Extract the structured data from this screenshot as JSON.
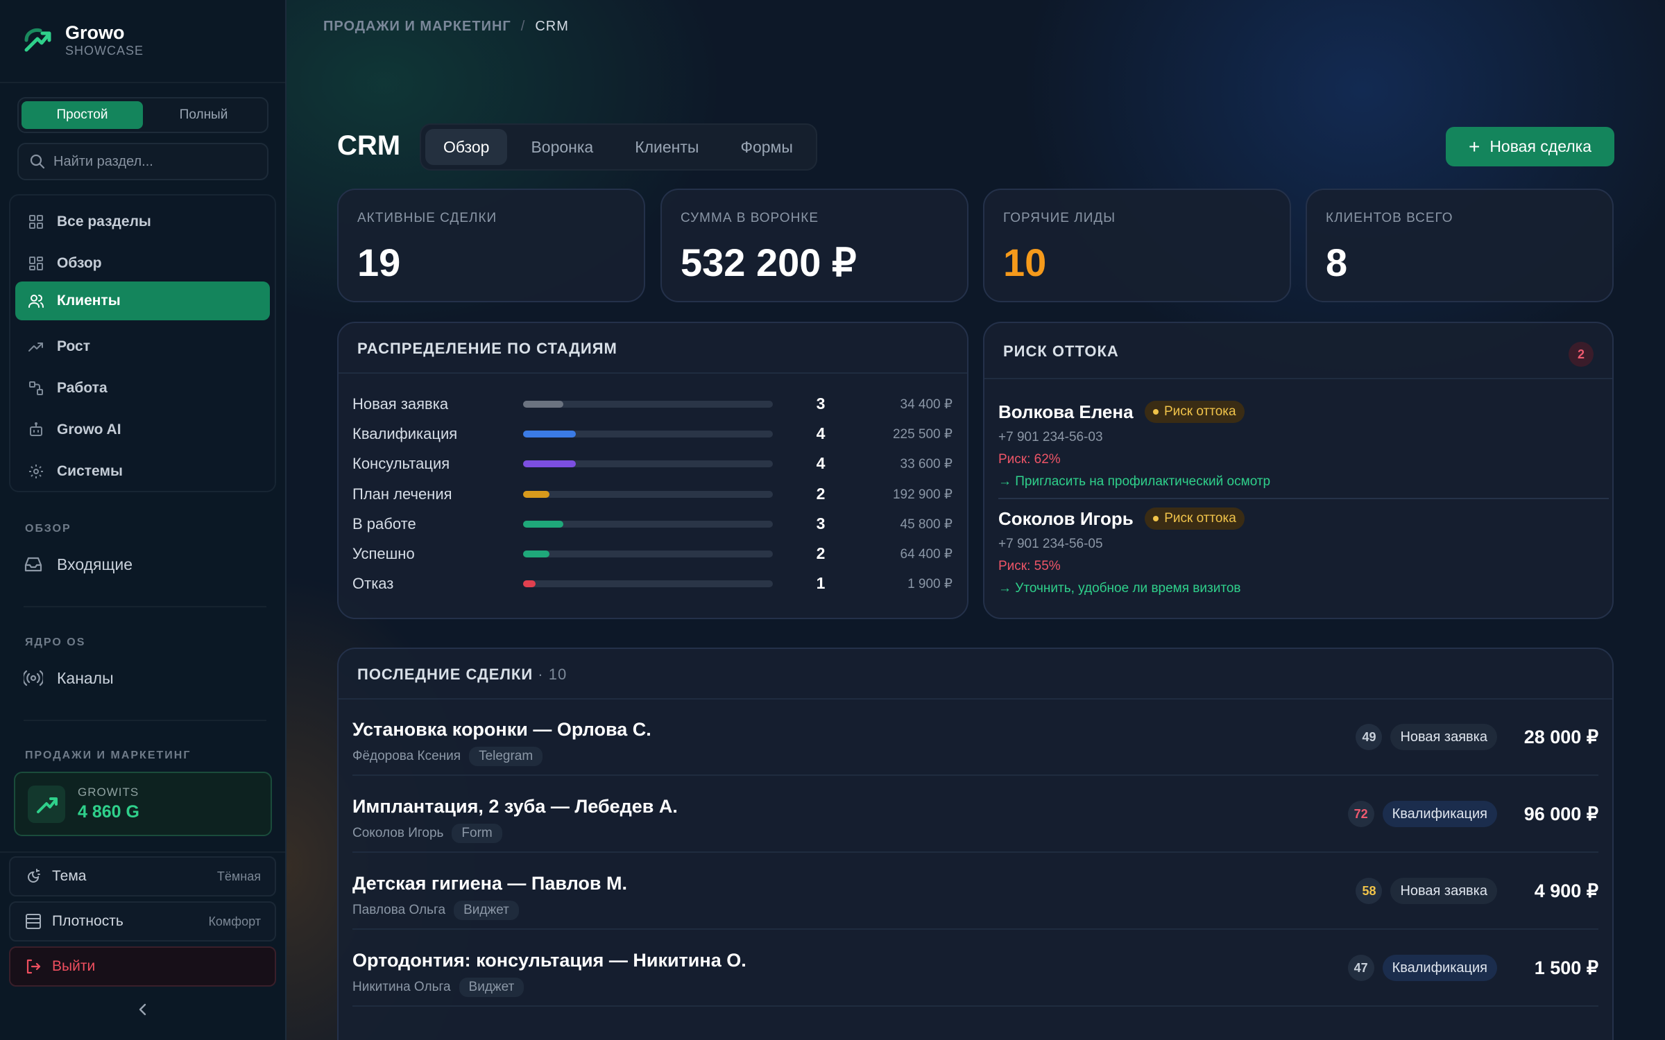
{
  "brand": {
    "name": "Growo",
    "sub": "SHOWCASE"
  },
  "sidebar": {
    "mode": {
      "simple": "Простой",
      "full": "Полный"
    },
    "search_placeholder": "Найти раздел...",
    "nav": [
      {
        "label": "Все разделы",
        "icon": "grid-icon"
      },
      {
        "label": "Обзор",
        "icon": "dashboard-icon"
      },
      {
        "label": "Клиенты",
        "icon": "users-icon",
        "active": true
      },
      {
        "label": "Рост",
        "icon": "trending-up-icon"
      },
      {
        "label": "Работа",
        "icon": "workflow-icon"
      },
      {
        "label": "Growo AI",
        "icon": "bot-icon"
      },
      {
        "label": "Системы",
        "icon": "gear-icon"
      }
    ],
    "sections": [
      {
        "title": "ОБЗОР",
        "link": "Входящие",
        "icon": "inbox-icon"
      },
      {
        "title": "ЯДРО OS",
        "link": "Каналы",
        "icon": "broadcast-icon"
      },
      {
        "title": "ПРОДАЖИ И МАРКЕТИНГ"
      }
    ],
    "growits": {
      "label": "GROWITS",
      "value": "4 860 G"
    },
    "settings": {
      "theme_label": "Тема",
      "theme_value": "Тёмная",
      "density_label": "Плотность",
      "density_value": "Комфорт",
      "logout_label": "Выйти"
    }
  },
  "breadcrumb": {
    "section": "ПРОДАЖИ И МАРКЕТИНГ",
    "separator": "/",
    "current": "CRM"
  },
  "page": {
    "title": "CRM",
    "tabs": [
      "Обзор",
      "Воронка",
      "Клиенты",
      "Формы"
    ],
    "new_deal_label": "Новая сделка"
  },
  "stats": [
    {
      "label": "АКТИВНЫЕ СДЕЛКИ",
      "value": "19"
    },
    {
      "label": "СУММА В ВОРОНКЕ",
      "value": "532 200 ₽"
    },
    {
      "label": "ГОРЯЧИЕ ЛИДЫ",
      "value": "10"
    },
    {
      "label": "КЛИЕНТОВ ВСЕГО",
      "value": "8"
    }
  ],
  "stages": {
    "title": "РАСПРЕДЕЛЕНИЕ ПО СТАДИЯМ",
    "rows": [
      {
        "name": "Новая заявка",
        "count": "3",
        "sum": "34 400 ₽",
        "fill": 0.16,
        "color": "#6b7380"
      },
      {
        "name": "Квалификация",
        "count": "4",
        "sum": "225 500 ₽",
        "fill": 0.21,
        "color": "#3b7be5"
      },
      {
        "name": "Консультация",
        "count": "4",
        "sum": "33 600 ₽",
        "fill": 0.21,
        "color": "#7c4fe0"
      },
      {
        "name": "План лечения",
        "count": "2",
        "sum": "192 900 ₽",
        "fill": 0.105,
        "color": "#d89a1c"
      },
      {
        "name": "В работе",
        "count": "3",
        "sum": "45 800 ₽",
        "fill": 0.16,
        "color": "#1fa87a"
      },
      {
        "name": "Успешно",
        "count": "2",
        "sum": "64 400 ₽",
        "fill": 0.105,
        "color": "#1fa87a"
      },
      {
        "name": "Отказ",
        "count": "1",
        "sum": "1 900 ₽",
        "fill": 0.05,
        "color": "#e0404f"
      }
    ]
  },
  "churn": {
    "title": "РИСК ОТТОКА",
    "count": "2",
    "items": [
      {
        "name": "Волкова Елена",
        "tag": "Риск оттока",
        "phone": "+7 901 234-56-03",
        "risk": "Риск: 62%",
        "action": "→ Пригласить на профилактический осмотр"
      },
      {
        "name": "Соколов Игорь",
        "tag": "Риск оттока",
        "phone": "+7 901 234-56-05",
        "risk": "Риск: 55%",
        "action": "→ Уточнить, удобное ли время визитов"
      }
    ]
  },
  "deals": {
    "title": "ПОСЛЕДНИЕ СДЕЛКИ",
    "count": "· 10",
    "rows": [
      {
        "title": "Установка коронки — Орлова С.",
        "person": "Фёдорова Ксения",
        "source": "Telegram",
        "score": "49",
        "score_color": "#c9d1db",
        "stage": "Новая заявка",
        "amount": "28 000 ₽"
      },
      {
        "title": "Имплантация, 2 зуба — Лебедев А.",
        "person": "Соколов Игорь",
        "source": "Form",
        "score": "72",
        "score_color": "#ef5a6f",
        "stage": "Квалификация",
        "amount": "96 000 ₽"
      },
      {
        "title": "Детская гигиена — Павлов М.",
        "person": "Павлова Ольга",
        "source": "Виджет",
        "score": "58",
        "score_color": "#f0c34a",
        "stage": "Новая заявка",
        "amount": "4 900 ₽"
      },
      {
        "title": "Ортодонтия: консультация — Никитина О.",
        "person": "Никитина Ольга",
        "source": "Виджет",
        "score": "47",
        "score_color": "#c9d1db",
        "stage": "Квалификация",
        "amount": "1 500 ₽"
      }
    ]
  }
}
